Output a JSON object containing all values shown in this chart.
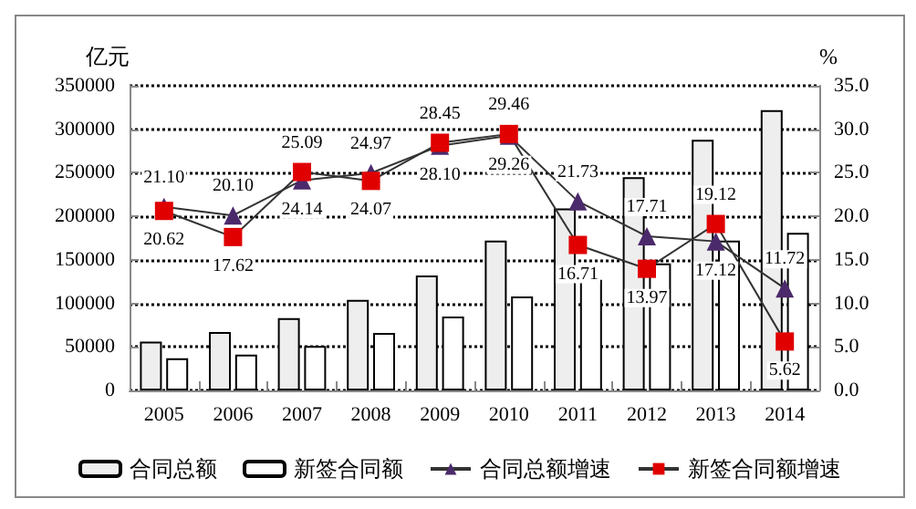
{
  "chart_data": {
    "type": "bar",
    "categories": [
      "2005",
      "2006",
      "2007",
      "2008",
      "2009",
      "2010",
      "2011",
      "2012",
      "2013",
      "2014"
    ],
    "ylabel": "亿元",
    "y2label": "%",
    "series": [
      {
        "name": "合同总额",
        "color": "#eeeeee",
        "values": [
          56000,
          67000,
          83000,
          104000,
          132000,
          172000,
          209000,
          245000,
          288000,
          322000
        ]
      },
      {
        "name": "新签合同额",
        "color": "#ffffff",
        "values": [
          37000,
          41000,
          51000,
          66000,
          85000,
          108000,
          127000,
          146000,
          172000,
          181000
        ]
      },
      {
        "name": "合同总额增速",
        "type": "line",
        "axis": "y2",
        "marker": "triangle",
        "color": "#4b2a6b",
        "values": [
          21.1,
          20.1,
          24.14,
          24.97,
          28.1,
          29.26,
          21.73,
          17.71,
          17.12,
          11.72
        ],
        "value_labels": [
          "21.10",
          "20.10",
          "24.14",
          "24.97",
          "28.10",
          "29.26",
          "21.73",
          "17.71",
          "17.12",
          "11.72"
        ]
      },
      {
        "name": "新签合同额增速",
        "type": "line",
        "axis": "y2",
        "marker": "square",
        "color": "#e00000",
        "values": [
          20.62,
          17.62,
          25.09,
          24.07,
          28.45,
          29.46,
          16.71,
          13.97,
          19.12,
          5.62
        ],
        "value_labels": [
          "20.62",
          "17.62",
          "25.09",
          "24.07",
          "28.45",
          "29.46",
          "16.71",
          "13.97",
          "19.12",
          "5.62"
        ]
      }
    ],
    "ylim": [
      0,
      350000
    ],
    "yticks": [
      0,
      50000,
      100000,
      150000,
      200000,
      250000,
      300000,
      350000
    ],
    "y2lim": [
      0,
      35
    ],
    "y2ticks": [
      {
        "value": 0,
        "label": "0.0"
      },
      {
        "value": 5,
        "label": "5.0"
      },
      {
        "value": 10,
        "label": "10.0"
      },
      {
        "value": 15,
        "label": "15.0"
      },
      {
        "value": 20,
        "label": "20.0"
      },
      {
        "value": 25,
        "label": "25.0"
      },
      {
        "value": 30,
        "label": "30.0"
      },
      {
        "value": 35,
        "label": "35.0"
      }
    ],
    "grid": "y",
    "legend": "bottom",
    "line_style": "solid"
  }
}
